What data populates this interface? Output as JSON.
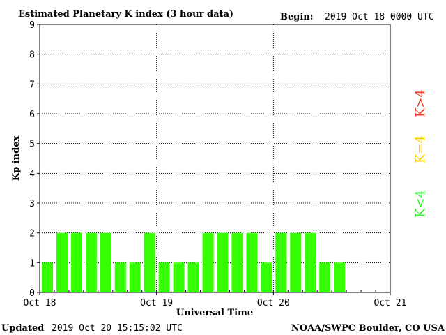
{
  "header": {
    "title": "Estimated Planetary K index (3 hour data)",
    "begin_label": "Begin:",
    "begin_value": "2019 Oct 18 0000 UTC"
  },
  "footer": {
    "updated_label": "Updated",
    "updated_value": "2019 Oct 20 15:15:02 UTC",
    "credit": "NOAA/SWPC Boulder, CO USA"
  },
  "legend": {
    "low": {
      "text": "K<4",
      "color": "#33ee33"
    },
    "mid": {
      "text": "K=4",
      "color": "#ffcc00"
    },
    "high": {
      "text": "K>4",
      "color": "#ee3322"
    }
  },
  "chart_data": {
    "type": "bar",
    "title": "Estimated Planetary K index (3 hour data)",
    "ylabel": "Kp index",
    "xlabel": "Universal Time",
    "ylim": [
      0,
      9
    ],
    "yticks": [
      0,
      1,
      2,
      3,
      4,
      5,
      6,
      7,
      8,
      9
    ],
    "xticks": [
      "Oct 18",
      "Oct 19",
      "Oct 20",
      "Oct 21"
    ],
    "slots_total": 24,
    "grid": true,
    "bar_color": "#33ff00",
    "values": [
      1,
      2,
      2,
      2,
      2,
      1,
      1,
      2,
      1,
      1,
      1,
      2,
      2,
      2,
      2,
      1,
      2,
      2,
      2,
      1,
      1
    ]
  }
}
